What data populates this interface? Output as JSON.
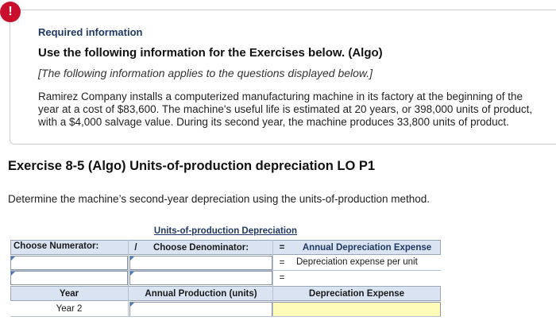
{
  "alert": {
    "symbol": "!"
  },
  "required_info": "Required information",
  "use_line": "Use the following information for the Exercises below. (Algo)",
  "italic_note": "[The following information applies to the questions displayed below.]",
  "scenario": "Ramirez Company installs a computerized manufacturing machine in its factory at the beginning of the year at a cost of $83,600. The machine's useful life is estimated at 20 years, or 398,000 units of product, with a $4,000 salvage value. During its second year, the machine produces 33,800 units of product.",
  "exercise_title": "Exercise 8-5 (Algo) Units-of-production depreciation LO P1",
  "instruction": "Determine the machine’s second-year depreciation using the units-of-production method.",
  "table": {
    "title": "Units-of-production Depreciation",
    "numerator_header": "Choose Numerator:",
    "divide_symbol": "/",
    "denominator_header": "Choose Denominator:",
    "equals_symbol": "=",
    "result_header": "Annual Depreciation Expense",
    "row1_result": "Depreciation expense per unit",
    "row1_numerator": "",
    "row1_denominator": "",
    "row2_numerator": "",
    "row2_denominator": "",
    "row2_result": "",
    "year_header": "Year",
    "annual_production_header": "Annual Production (units)",
    "depreciation_expense_header": "Depreciation Expense",
    "year_label": "Year 2",
    "annual_production_value": "",
    "depreciation_expense_value": ""
  }
}
